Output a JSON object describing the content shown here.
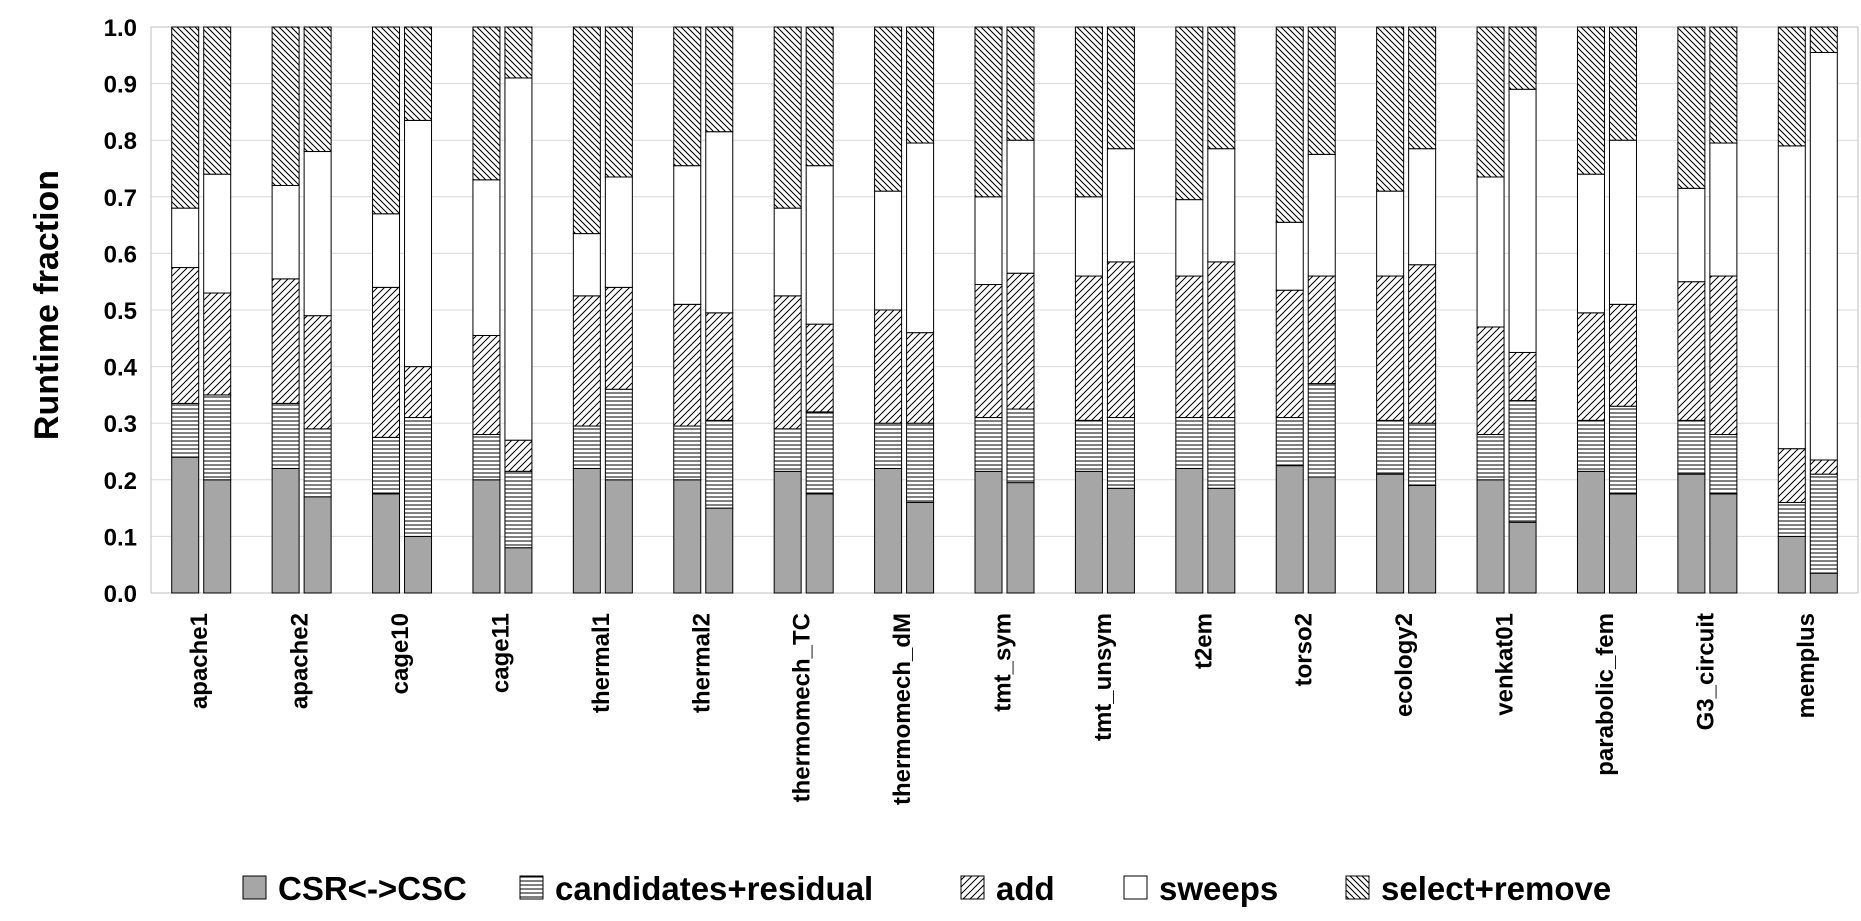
{
  "chart_data": {
    "type": "bar",
    "stacked": true,
    "bars_per_category": 2,
    "ylabel": "Runtime fraction",
    "xlabel": "",
    "ylim": [
      0,
      1.0
    ],
    "yticks": [
      0.0,
      0.1,
      0.2,
      0.3,
      0.4,
      0.5,
      0.6,
      0.7,
      0.8,
      0.9,
      1.0
    ],
    "ytick_labels": [
      "0.0",
      "0.1",
      "0.2",
      "0.3",
      "0.4",
      "0.5",
      "0.6",
      "0.7",
      "0.8",
      "0.9",
      "1.0"
    ],
    "grid": "horizontal",
    "legend_position": "bottom",
    "categories": [
      "apache1",
      "apache2",
      "cage10",
      "cage11",
      "thermal1",
      "thermal2",
      "thermomech_TC",
      "thermomech_dM",
      "tmt_sym",
      "tmt_unsym",
      "t2em",
      "torso2",
      "ecology2",
      "venkat01",
      "parabolic_fem",
      "G3_circuit",
      "memplus"
    ],
    "series": [
      {
        "name": "CSR<->CSC",
        "pattern": "solid-gray",
        "color": "#a6a6a6",
        "values": [
          [
            0.24,
            0.2
          ],
          [
            0.22,
            0.17
          ],
          [
            0.175,
            0.1
          ],
          [
            0.2,
            0.08
          ],
          [
            0.22,
            0.2
          ],
          [
            0.2,
            0.15
          ],
          [
            0.215,
            0.175
          ],
          [
            0.22,
            0.16
          ],
          [
            0.215,
            0.195
          ],
          [
            0.215,
            0.185
          ],
          [
            0.22,
            0.185
          ],
          [
            0.225,
            0.205
          ],
          [
            0.21,
            0.19
          ],
          [
            0.2,
            0.125
          ],
          [
            0.215,
            0.175
          ],
          [
            0.21,
            0.175
          ],
          [
            0.1,
            0.035
          ]
        ]
      },
      {
        "name": "candidates+residual",
        "pattern": "horizontal-lines",
        "values": [
          [
            0.095,
            0.15
          ],
          [
            0.115,
            0.12
          ],
          [
            0.1,
            0.21
          ],
          [
            0.08,
            0.135
          ],
          [
            0.075,
            0.16
          ],
          [
            0.095,
            0.155
          ],
          [
            0.075,
            0.145
          ],
          [
            0.08,
            0.14
          ],
          [
            0.095,
            0.13
          ],
          [
            0.09,
            0.125
          ],
          [
            0.09,
            0.125
          ],
          [
            0.085,
            0.165
          ],
          [
            0.095,
            0.11
          ],
          [
            0.08,
            0.215
          ],
          [
            0.09,
            0.155
          ],
          [
            0.095,
            0.105
          ],
          [
            0.06,
            0.175
          ]
        ]
      },
      {
        "name": "add",
        "pattern": "diagonal-lines",
        "values": [
          [
            0.24,
            0.18
          ],
          [
            0.22,
            0.2
          ],
          [
            0.265,
            0.09
          ],
          [
            0.175,
            0.055
          ],
          [
            0.23,
            0.18
          ],
          [
            0.215,
            0.19
          ],
          [
            0.235,
            0.155
          ],
          [
            0.2,
            0.16
          ],
          [
            0.235,
            0.24
          ],
          [
            0.255,
            0.275
          ],
          [
            0.25,
            0.275
          ],
          [
            0.225,
            0.19
          ],
          [
            0.255,
            0.28
          ],
          [
            0.19,
            0.085
          ],
          [
            0.19,
            0.18
          ],
          [
            0.245,
            0.28
          ],
          [
            0.095,
            0.025
          ]
        ]
      },
      {
        "name": "sweeps",
        "pattern": "white",
        "values": [
          [
            0.105,
            0.21
          ],
          [
            0.165,
            0.29
          ],
          [
            0.13,
            0.435
          ],
          [
            0.275,
            0.64
          ],
          [
            0.11,
            0.195
          ],
          [
            0.245,
            0.32
          ],
          [
            0.155,
            0.28
          ],
          [
            0.21,
            0.335
          ],
          [
            0.155,
            0.235
          ],
          [
            0.14,
            0.2
          ],
          [
            0.135,
            0.2
          ],
          [
            0.12,
            0.215
          ],
          [
            0.15,
            0.205
          ],
          [
            0.265,
            0.465
          ],
          [
            0.245,
            0.29
          ],
          [
            0.165,
            0.235
          ],
          [
            0.535,
            0.72
          ]
        ]
      },
      {
        "name": "select+remove",
        "pattern": "back-diagonal-lines",
        "values": [
          [
            0.32,
            0.26
          ],
          [
            0.28,
            0.22
          ],
          [
            0.33,
            0.165
          ],
          [
            0.27,
            0.09
          ],
          [
            0.365,
            0.265
          ],
          [
            0.245,
            0.185
          ],
          [
            0.32,
            0.245
          ],
          [
            0.29,
            0.205
          ],
          [
            0.3,
            0.2
          ],
          [
            0.3,
            0.215
          ],
          [
            0.305,
            0.215
          ],
          [
            0.345,
            0.225
          ],
          [
            0.29,
            0.215
          ],
          [
            0.265,
            0.11
          ],
          [
            0.26,
            0.2
          ],
          [
            0.285,
            0.205
          ],
          [
            0.21,
            0.045
          ]
        ]
      }
    ],
    "legend": [
      "CSR<->CSC",
      "candidates+residual",
      "add",
      "sweeps",
      "select+remove"
    ]
  }
}
